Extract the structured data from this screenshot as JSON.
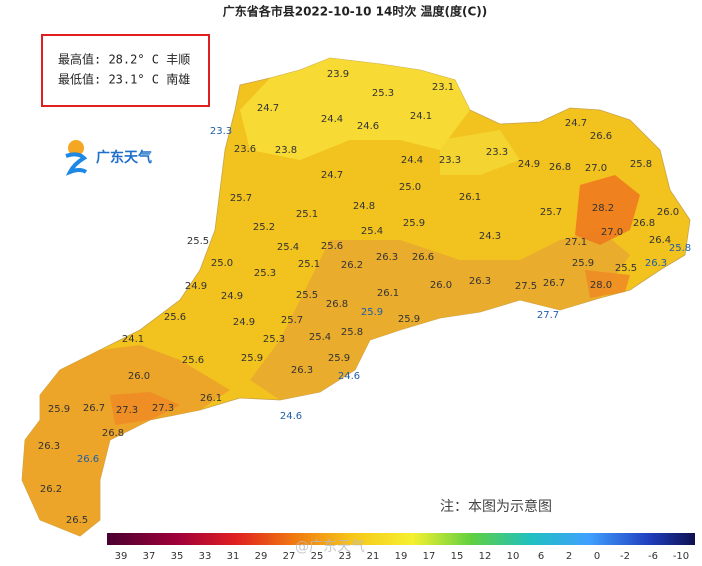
{
  "header": {
    "title": "广东省各市县2022-10-10 14时次 温度(度(C))"
  },
  "stats": {
    "max": "最高值: 28.2° C 丰顺",
    "min": "最低值: 23.1° C 南雄"
  },
  "logo": "广东天气",
  "labels": [
    "23.9",
    "25.3",
    "23.1",
    "24.7",
    "24.4",
    "24.6",
    "24.1",
    "23.3",
    "24.7",
    "26.6",
    "23.6",
    "23.8",
    "24.4",
    "23.3",
    "23.3",
    "24.9",
    "26.8",
    "27.0",
    "25.8",
    "24.7",
    "25.0",
    "26.1",
    "25.7",
    "24.8",
    "25.7",
    "28.2",
    "26.0",
    "25.1",
    "25.2",
    "25.9",
    "26.8",
    "25.4",
    "27.0",
    "24.3",
    "25.5",
    "25.4",
    "25.6",
    "26.4",
    "25.8",
    "27.1",
    "26.3",
    "26.6",
    "26.2",
    "25.0",
    "25.1",
    "25.9",
    "25.5",
    "26.3",
    "25.3",
    "26.0",
    "26.3",
    "27.5",
    "26.7",
    "28.0",
    "24.9",
    "26.1",
    "24.9",
    "25.5",
    "26.8",
    "25.9",
    "27.7",
    "25.6",
    "25.7",
    "25.9",
    "24.9",
    "25.3",
    "25.4",
    "25.8",
    "24.1",
    "25.9",
    "25.9",
    "25.6",
    "26.3",
    "24.6",
    "26.0",
    "25.9",
    "26.7",
    "27.3",
    "27.3",
    "26.1",
    "24.6",
    "26.8",
    "26.3",
    "26.6",
    "26.2",
    "26.5"
  ],
  "note": "注：本图为示意图",
  "watermark": "@广东天气",
  "legend": {
    "labels": [
      "39",
      "37",
      "35",
      "33",
      "31",
      "29",
      "27",
      "25",
      "23",
      "21",
      "19",
      "17",
      "15",
      "12",
      "10",
      "6",
      "2",
      "0",
      "-2",
      "-6",
      "-10"
    ]
  }
}
